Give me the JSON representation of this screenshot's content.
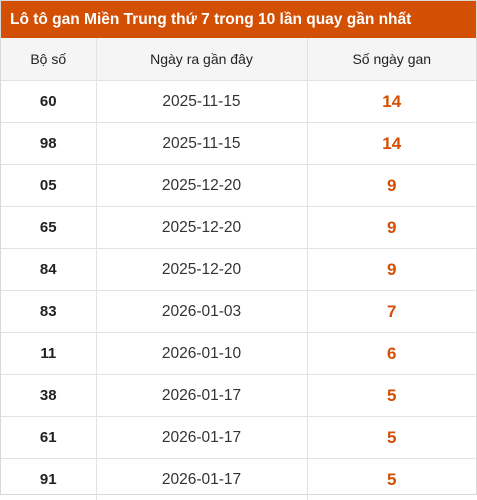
{
  "title": "Lô tô gan Miền Trung thứ 7 trong 10 lần quay gần nhất",
  "headers": {
    "col1": "Bộ số",
    "col2": "Ngày ra gần đây",
    "col3": "Số ngày gan"
  },
  "rows": [
    {
      "number": "60",
      "date": "2025-11-15",
      "days": "14"
    },
    {
      "number": "98",
      "date": "2025-11-15",
      "days": "14"
    },
    {
      "number": "05",
      "date": "2025-12-20",
      "days": "9"
    },
    {
      "number": "65",
      "date": "2025-12-20",
      "days": "9"
    },
    {
      "number": "84",
      "date": "2025-12-20",
      "days": "9"
    },
    {
      "number": "83",
      "date": "2026-01-03",
      "days": "7"
    },
    {
      "number": "11",
      "date": "2026-01-10",
      "days": "6"
    },
    {
      "number": "38",
      "date": "2026-01-17",
      "days": "5"
    },
    {
      "number": "61",
      "date": "2026-01-17",
      "days": "5"
    },
    {
      "number": "91",
      "date": "2026-01-17",
      "days": "5"
    }
  ],
  "colors": {
    "accent": "#d24f04",
    "header_bg": "#f5f5f5"
  }
}
